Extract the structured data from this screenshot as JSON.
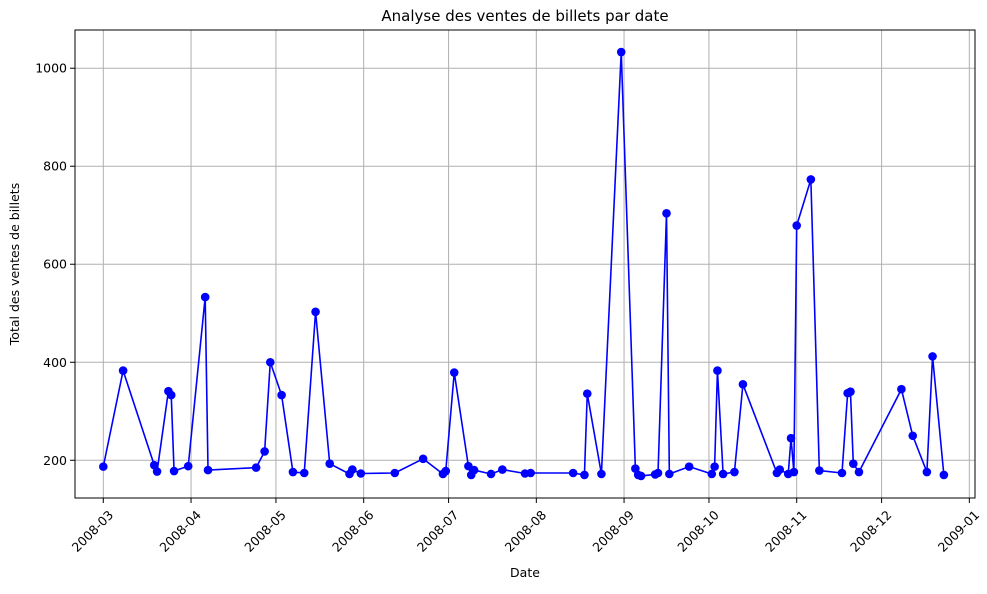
{
  "chart_data": {
    "type": "line",
    "title": "Analyse des ventes de billets par date",
    "xlabel": "Date",
    "ylabel": "Total des ventes de billets",
    "x_type": "date",
    "xlim": [
      "2008-02-20",
      "2009-01-03"
    ],
    "ylim": [
      123,
      1078
    ],
    "x_ticks": [
      "2008-03-01",
      "2008-04-01",
      "2008-05-01",
      "2008-06-01",
      "2008-07-01",
      "2008-08-01",
      "2008-09-01",
      "2008-10-01",
      "2008-11-01",
      "2008-12-01",
      "2009-01-01"
    ],
    "x_tick_labels": [
      "2008-03",
      "2008-04",
      "2008-05",
      "2008-06",
      "2008-07",
      "2008-08",
      "2008-09",
      "2008-10",
      "2008-11",
      "2008-12",
      "2009-01"
    ],
    "y_ticks": [
      200,
      400,
      600,
      800,
      1000
    ],
    "y_tick_labels": [
      "200",
      "400",
      "600",
      "800",
      "1000"
    ],
    "grid": true,
    "marker": "circle",
    "colors": {
      "series": "#0000ff",
      "grid": "#b0b0b0"
    },
    "series": [
      {
        "x": [
          "2008-03-01",
          "2008-03-08",
          "2008-03-19",
          "2008-03-20",
          "2008-03-24",
          "2008-03-25",
          "2008-03-26",
          "2008-03-31",
          "2008-04-06",
          "2008-04-07",
          "2008-04-24",
          "2008-04-27",
          "2008-04-29",
          "2008-05-03",
          "2008-05-07",
          "2008-05-11",
          "2008-05-15",
          "2008-05-20",
          "2008-05-27",
          "2008-05-28",
          "2008-05-31",
          "2008-06-12",
          "2008-06-22",
          "2008-06-29",
          "2008-06-30",
          "2008-07-03",
          "2008-07-08",
          "2008-07-09",
          "2008-07-10",
          "2008-07-16",
          "2008-07-20",
          "2008-07-28",
          "2008-07-30",
          "2008-08-14",
          "2008-08-18",
          "2008-08-19",
          "2008-08-24",
          "2008-08-31",
          "2008-09-05",
          "2008-09-06",
          "2008-09-07",
          "2008-09-12",
          "2008-09-13",
          "2008-09-16",
          "2008-09-17",
          "2008-09-24",
          "2008-10-02",
          "2008-10-03",
          "2008-10-04",
          "2008-10-06",
          "2008-10-10",
          "2008-10-13",
          "2008-10-25",
          "2008-10-26",
          "2008-10-29",
          "2008-10-30",
          "2008-10-31",
          "2008-11-01",
          "2008-11-06",
          "2008-11-09",
          "2008-11-17",
          "2008-11-19",
          "2008-11-20",
          "2008-11-21",
          "2008-11-23",
          "2008-12-08",
          "2008-12-12",
          "2008-12-17",
          "2008-12-19",
          "2008-12-23"
        ],
        "y": [
          187,
          383,
          190,
          177,
          341,
          333,
          178,
          188,
          533,
          180,
          185,
          218,
          400,
          333,
          176,
          174,
          503,
          193,
          172,
          181,
          173,
          174,
          203,
          172,
          178,
          379,
          188,
          170,
          180,
          172,
          181,
          173,
          174,
          174,
          170,
          336,
          172,
          1033,
          183,
          170,
          168,
          171,
          174,
          704,
          172,
          187,
          172,
          187,
          383,
          172,
          176,
          355,
          174,
          181,
          172,
          245,
          176,
          679,
          773,
          179,
          174,
          337,
          340,
          193,
          176,
          345,
          250,
          176,
          412,
          170
        ]
      }
    ]
  }
}
